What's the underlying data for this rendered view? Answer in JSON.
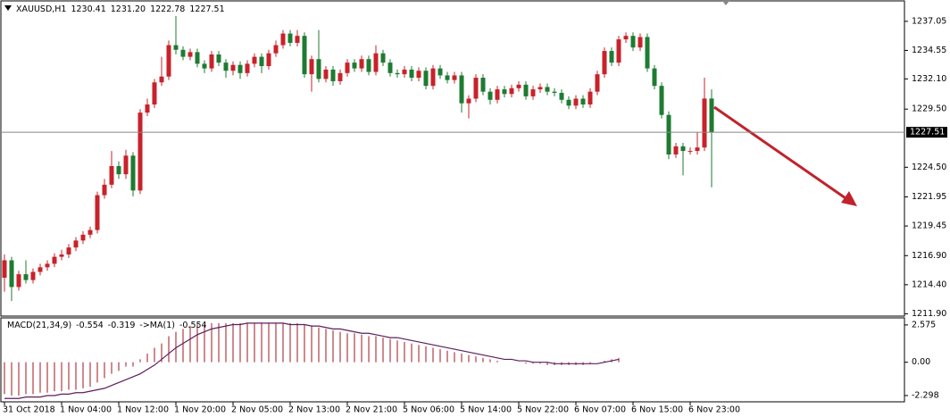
{
  "chart_data": [
    {
      "type": "candlestick",
      "title": "XAUUSD,H1",
      "last_labels": [
        "1230.41",
        "1231.20",
        "1222.78",
        "1227.51"
      ],
      "categories": [
        "31 Oct 2018",
        null,
        null,
        null,
        null,
        null,
        null,
        null,
        "1 Nov 04:00",
        null,
        null,
        null,
        null,
        null,
        null,
        null,
        "1 Nov 12:00",
        null,
        null,
        null,
        null,
        null,
        null,
        null,
        "1 Nov 20:00",
        null,
        null,
        null,
        null,
        null,
        null,
        null,
        "2 Nov 05:00",
        null,
        null,
        null,
        null,
        null,
        null,
        null,
        "2 Nov 13:00",
        null,
        null,
        null,
        null,
        null,
        null,
        null,
        "2 Nov 21:00",
        null,
        null,
        null,
        null,
        null,
        null,
        null,
        "5 Nov 06:00",
        null,
        null,
        null,
        null,
        null,
        null,
        null,
        "5 Nov 14:00",
        null,
        null,
        null,
        null,
        null,
        null,
        null,
        "5 Nov 22:00",
        null,
        null,
        null,
        null,
        null,
        null,
        null,
        "6 Nov 07:00",
        null,
        null,
        null,
        null,
        null,
        null,
        null,
        "6 Nov 15:00",
        null,
        null,
        null,
        null,
        null,
        null,
        null,
        "6 Nov 23:00",
        null,
        null,
        null
      ],
      "open": [
        1215.0,
        1216.5,
        1214.2,
        1215.3,
        1214.8,
        1215.5,
        1215.9,
        1216.2,
        1216.8,
        1217.0,
        1217.6,
        1218.2,
        1218.7,
        1219.1,
        1222.1,
        1223.0,
        1224.6,
        1223.9,
        1225.5,
        1222.5,
        1229.2,
        1229.9,
        1231.8,
        1232.3,
        1235.0,
        1234.6,
        1234.0,
        1234.4,
        1233.4,
        1233.0,
        1234.2,
        1233.5,
        1232.8,
        1233.3,
        1232.6,
        1233.4,
        1234.0,
        1233.2,
        1234.3,
        1235.0,
        1236.0,
        1235.2,
        1235.8,
        1232.5,
        1233.8,
        1232.1,
        1232.9,
        1231.9,
        1232.6,
        1233.5,
        1233.0,
        1233.8,
        1232.7,
        1234.3,
        1233.5,
        1232.6,
        1232.5,
        1232.9,
        1232.2,
        1232.8,
        1231.5,
        1233.0,
        1232.4,
        1232.0,
        1232.4,
        1230.0,
        1230.4,
        1232.2,
        1231.0,
        1230.3,
        1231.2,
        1230.8,
        1231.3,
        1231.6,
        1230.6,
        1231.2,
        1231.4,
        1231.0,
        1230.9,
        1230.3,
        1229.8,
        1230.4,
        1229.9,
        1231.0,
        1232.5,
        1234.5,
        1233.5,
        1235.5,
        1235.8,
        1234.8,
        1235.7,
        1233.0,
        1231.5,
        1229.0,
        1225.6,
        1226.3,
        1225.9,
        1225.9,
        1226.2,
        1230.41
      ],
      "high": [
        1217.0,
        1216.8,
        1215.6,
        1216.5,
        1215.8,
        1216.2,
        1216.5,
        1217.1,
        1217.4,
        1217.9,
        1218.5,
        1219.0,
        1219.4,
        1222.4,
        1223.5,
        1225.9,
        1225.0,
        1226.0,
        1225.8,
        1229.5,
        1230.4,
        1232.1,
        1234.0,
        1235.4,
        1237.5,
        1234.9,
        1234.7,
        1234.7,
        1233.7,
        1234.5,
        1234.5,
        1233.8,
        1233.6,
        1233.6,
        1233.7,
        1234.3,
        1234.3,
        1234.6,
        1235.4,
        1236.3,
        1236.3,
        1236.3,
        1236.1,
        1234.1,
        1236.3,
        1233.2,
        1233.2,
        1232.9,
        1233.8,
        1233.8,
        1234.1,
        1234.1,
        1235.0,
        1234.6,
        1233.8,
        1232.9,
        1233.2,
        1233.2,
        1233.1,
        1233.1,
        1233.3,
        1233.3,
        1232.7,
        1232.7,
        1232.7,
        1230.7,
        1232.5,
        1232.5,
        1231.3,
        1231.5,
        1231.5,
        1231.6,
        1231.9,
        1231.9,
        1231.5,
        1231.7,
        1231.7,
        1231.3,
        1231.2,
        1230.6,
        1230.7,
        1230.7,
        1231.3,
        1232.8,
        1234.8,
        1234.8,
        1235.8,
        1236.1,
        1236.1,
        1236.0,
        1236.0,
        1233.3,
        1231.8,
        1229.3,
        1226.6,
        1226.6,
        1226.2,
        1227.5,
        1232.2,
        1231.2
      ],
      "low": [
        1213.8,
        1213.0,
        1213.9,
        1214.5,
        1214.5,
        1215.2,
        1215.6,
        1215.9,
        1216.5,
        1216.7,
        1217.3,
        1217.9,
        1218.4,
        1218.8,
        1221.8,
        1222.7,
        1223.5,
        1223.5,
        1222.0,
        1222.2,
        1228.9,
        1229.6,
        1231.5,
        1232.0,
        1234.2,
        1233.7,
        1233.7,
        1233.1,
        1232.6,
        1232.7,
        1233.2,
        1232.2,
        1232.4,
        1232.1,
        1232.3,
        1233.1,
        1232.6,
        1232.9,
        1234.0,
        1234.7,
        1234.9,
        1234.9,
        1232.2,
        1231.0,
        1231.8,
        1231.8,
        1231.5,
        1231.6,
        1232.3,
        1232.7,
        1232.7,
        1232.4,
        1232.4,
        1233.2,
        1232.3,
        1232.2,
        1232.2,
        1231.9,
        1231.9,
        1231.2,
        1231.2,
        1232.1,
        1231.7,
        1231.7,
        1229.2,
        1228.7,
        1230.1,
        1230.7,
        1229.9,
        1230.0,
        1230.5,
        1230.5,
        1231.0,
        1230.3,
        1230.3,
        1230.9,
        1230.7,
        1230.6,
        1230.0,
        1229.5,
        1229.5,
        1229.6,
        1229.6,
        1230.7,
        1232.2,
        1233.2,
        1233.2,
        1235.2,
        1234.5,
        1234.5,
        1232.7,
        1231.2,
        1228.7,
        1225.2,
        1225.3,
        1223.8,
        1225.6,
        1225.6,
        1225.9,
        1222.78
      ],
      "close": [
        1216.5,
        1214.2,
        1215.3,
        1214.8,
        1215.5,
        1215.9,
        1216.2,
        1216.8,
        1217.0,
        1217.6,
        1218.2,
        1218.7,
        1219.1,
        1222.1,
        1223.0,
        1224.6,
        1223.9,
        1225.5,
        1222.5,
        1229.2,
        1229.9,
        1231.8,
        1232.3,
        1235.0,
        1234.6,
        1234.0,
        1234.4,
        1233.4,
        1233.0,
        1234.2,
        1233.5,
        1232.8,
        1233.3,
        1232.6,
        1233.4,
        1234.0,
        1233.2,
        1234.3,
        1235.0,
        1236.0,
        1235.2,
        1235.8,
        1232.5,
        1233.8,
        1232.1,
        1232.9,
        1231.9,
        1232.6,
        1233.5,
        1233.0,
        1233.8,
        1232.7,
        1234.3,
        1233.5,
        1232.6,
        1232.5,
        1232.9,
        1232.2,
        1232.8,
        1231.5,
        1233.0,
        1232.4,
        1232.0,
        1232.4,
        1230.0,
        1230.4,
        1232.2,
        1231.0,
        1230.3,
        1231.2,
        1230.8,
        1231.3,
        1231.6,
        1230.6,
        1231.2,
        1231.4,
        1231.0,
        1230.9,
        1230.3,
        1229.8,
        1230.4,
        1229.9,
        1231.0,
        1232.5,
        1234.5,
        1233.5,
        1235.5,
        1235.8,
        1234.8,
        1235.7,
        1233.0,
        1231.5,
        1229.0,
        1225.6,
        1226.3,
        1225.9,
        1225.9,
        1226.2,
        1230.41,
        1227.51
      ],
      "up_color": "#c8222a",
      "down_color": "#1e7b32",
      "ylim": [
        1211.7,
        1238.5
      ],
      "yticks": [
        1237.05,
        1234.55,
        {
          "value": 1232.1,
          "label": "1232.10"
        },
        {
          "value": 1229.5,
          "label": "1229.50"
        },
        {
          "value": 1224.5,
          "label": "1224.50"
        },
        1221.95,
        1219.45,
        {
          "value": 1216.9,
          "label": "1216.90"
        },
        {
          "value": 1214.4,
          "label": "1214.40"
        },
        {
          "value": 1211.9,
          "label": "1211.90"
        }
      ]
    },
    {
      "type": "macd",
      "title": "MACD(21,34,9)",
      "macd_value": -0.554,
      "signal_value": -0.319,
      "ma_label": "->MA(1)",
      "ma_value": -0.554,
      "histogram_color": "#a0141e",
      "signal_color": "#5c1f5c",
      "histogram": [
        -2.2,
        -2.3,
        -2.3,
        -2.2,
        -2.2,
        -2.1,
        -2.1,
        -2.0,
        -2.0,
        -1.9,
        -1.9,
        -1.8,
        -1.7,
        -1.4,
        -1.1,
        -0.8,
        -0.6,
        -0.3,
        -0.3,
        0.2,
        0.6,
        1.0,
        1.3,
        1.8,
        2.1,
        2.3,
        2.5,
        2.6,
        2.6,
        2.7,
        2.7,
        2.7,
        2.7,
        2.7,
        2.7,
        2.7,
        2.7,
        2.7,
        2.7,
        2.7,
        2.7,
        2.7,
        2.6,
        2.5,
        2.4,
        2.3,
        2.2,
        2.1,
        2.0,
        2.0,
        1.9,
        1.8,
        1.8,
        1.7,
        1.6,
        1.5,
        1.4,
        1.3,
        1.2,
        1.1,
        1.0,
        0.9,
        0.8,
        0.7,
        0.6,
        0.5,
        0.4,
        0.3,
        0.2,
        0.1,
        0.0,
        0.0,
        0.0,
        -0.1,
        -0.1,
        -0.1,
        -0.2,
        -0.2,
        -0.2,
        -0.2,
        -0.2,
        -0.2,
        -0.1,
        0.0,
        0.1,
        0.2,
        0.3,
        null,
        null,
        null,
        null,
        null,
        null,
        null,
        null,
        null,
        null,
        null,
        null,
        null
      ],
      "signal": [
        -2.5,
        -2.5,
        -2.5,
        -2.4,
        -2.4,
        -2.4,
        -2.3,
        -2.3,
        -2.2,
        -2.2,
        -2.1,
        -2.1,
        -2.0,
        -1.9,
        -1.8,
        -1.6,
        -1.4,
        -1.2,
        -1.0,
        -0.8,
        -0.5,
        -0.2,
        0.2,
        0.6,
        1.0,
        1.3,
        1.6,
        1.9,
        2.1,
        2.3,
        2.4,
        2.5,
        2.6,
        2.6,
        2.7,
        2.7,
        2.7,
        2.7,
        2.7,
        2.7,
        2.6,
        2.6,
        2.6,
        2.5,
        2.5,
        2.4,
        2.3,
        2.3,
        2.2,
        2.1,
        2.0,
        2.0,
        1.9,
        1.8,
        1.7,
        1.7,
        1.6,
        1.5,
        1.4,
        1.3,
        1.2,
        1.1,
        1.0,
        0.9,
        0.8,
        0.7,
        0.6,
        0.5,
        0.4,
        0.3,
        0.2,
        0.2,
        0.1,
        0.1,
        0.0,
        0.0,
        0.0,
        -0.1,
        -0.1,
        -0.1,
        -0.1,
        -0.1,
        -0.1,
        -0.1,
        0.0,
        0.1,
        0.2,
        null,
        null,
        null,
        null,
        null,
        null,
        null,
        null,
        null,
        null,
        null,
        null,
        null
      ],
      "ylim": [
        -2.67,
        3.0
      ],
      "yticks": [
        2.575,
        {
          "value": 0,
          "label": "0.00"
        },
        -2.298
      ]
    }
  ]
}
